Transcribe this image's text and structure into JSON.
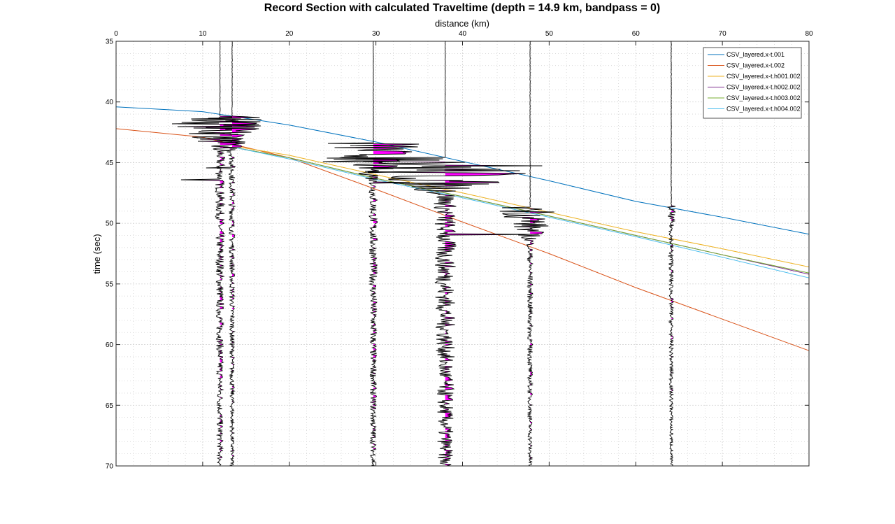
{
  "chart_data": {
    "type": "line",
    "title": "Record Section with calculated Traveltime (depth = 14.9 km, bandpass = 0)",
    "xlabel": "distance (km)",
    "ylabel": "time (sec)",
    "xlim": [
      0,
      80
    ],
    "ylim": [
      35,
      70
    ],
    "y_reversed": true,
    "x_axis_location": "top",
    "grid": "major and minor (dotted)",
    "x_ticks": [
      0,
      10,
      20,
      30,
      40,
      50,
      60,
      70,
      80
    ],
    "y_ticks": [
      35,
      40,
      45,
      50,
      55,
      60,
      65,
      70
    ],
    "legend_position": "top-right",
    "traveltime_curves": [
      {
        "name": "CSV_layered.x-t.001",
        "color": "#0072BD",
        "x": [
          0,
          10,
          20,
          30,
          40,
          50,
          60,
          70,
          80
        ],
        "y": [
          40.4,
          40.8,
          41.9,
          43.3,
          44.9,
          46.5,
          48.2,
          49.5,
          50.9
        ]
      },
      {
        "name": "CSV_layered.x-t.002",
        "color": "#D95319",
        "x": [
          0,
          10,
          20,
          30,
          40,
          50,
          60,
          70,
          80
        ],
        "y": [
          42.2,
          42.9,
          44.6,
          47.2,
          49.9,
          52.5,
          55.3,
          57.9,
          60.5
        ]
      },
      {
        "name": "CSV_layered.x-t.h001.002",
        "color": "#EDB120",
        "x": [
          14,
          20,
          30,
          40,
          50,
          60,
          70,
          80
        ],
        "y": [
          43.7,
          44.4,
          46.0,
          47.5,
          49.1,
          50.7,
          52.1,
          53.6
        ]
      },
      {
        "name": "CSV_layered.x-t.h002.002",
        "color": "#7E2F8E",
        "x": [
          14,
          20,
          30,
          40,
          50,
          60,
          70,
          80
        ],
        "y": [
          43.8,
          44.6,
          46.3,
          47.8,
          49.4,
          51.0,
          52.6,
          54.2
        ]
      },
      {
        "name": "CSV_layered.x-t.h003.002",
        "color": "#77AC30",
        "x": [
          14,
          20,
          30,
          40,
          50,
          60,
          70,
          80
        ],
        "y": [
          43.8,
          44.6,
          46.3,
          47.8,
          49.4,
          51.0,
          52.6,
          54.1
        ]
      },
      {
        "name": "CSV_layered.x-t.h004.002",
        "color": "#4DBEEE",
        "x": [
          14,
          20,
          30,
          40,
          50,
          60,
          70,
          80
        ],
        "y": [
          43.8,
          44.7,
          46.4,
          47.9,
          49.5,
          51.1,
          52.8,
          54.5
        ]
      }
    ],
    "seismograms": {
      "trace_color": "#000000",
      "fill_color": "#FF00FF",
      "traces": [
        {
          "distance": 12.0,
          "onset_time": 41.2,
          "peak_amplitude_km": 7.5
        },
        {
          "distance": 13.4,
          "onset_time": 41.2,
          "peak_amplitude_km": 5.0
        },
        {
          "distance": 29.7,
          "onset_time": 43.4,
          "peak_amplitude_km": 7.0
        },
        {
          "distance": 38.0,
          "onset_time": 44.6,
          "peak_amplitude_km": 18.0
        },
        {
          "distance": 47.8,
          "onset_time": 48.7,
          "peak_amplitude_km": 4.5
        },
        {
          "distance": 64.1,
          "onset_time": 48.6,
          "peak_amplitude_km": 0.6
        }
      ]
    }
  }
}
